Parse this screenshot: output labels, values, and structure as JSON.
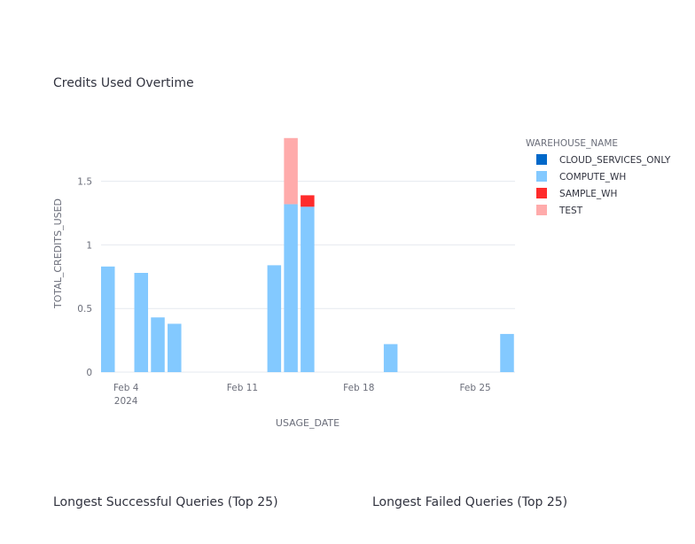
{
  "chart_title": "Credits Used Overtime",
  "sections": {
    "successful": "Longest Successful Queries (Top 25)",
    "failed": "Longest Failed Queries (Top 25)"
  },
  "chart_data": {
    "type": "bar",
    "stacked": true,
    "title": "Credits Used Overtime",
    "xlabel": "USAGE_DATE",
    "ylabel": "TOTAL_CREDITS_USED",
    "ylim": [
      0,
      1.95
    ],
    "yticks": [
      0,
      0.5,
      1,
      1.5
    ],
    "ytick_labels": [
      "0",
      "0.5",
      "1",
      "1.5"
    ],
    "x_range": [
      "2024-02-03",
      "2024-02-28"
    ],
    "xticks": [
      {
        "date": "2024-02-04",
        "label": "Feb 4",
        "sublabel": "2024"
      },
      {
        "date": "2024-02-11",
        "label": "Feb 11",
        "sublabel": ""
      },
      {
        "date": "2024-02-18",
        "label": "Feb 18",
        "sublabel": ""
      },
      {
        "date": "2024-02-25",
        "label": "Feb 25",
        "sublabel": ""
      }
    ],
    "legend": {
      "title": "WAREHOUSE_NAME",
      "placement": "right",
      "entries": [
        {
          "name": "CLOUD_SERVICES_ONLY",
          "color": "#0068c9"
        },
        {
          "name": "COMPUTE_WH",
          "color": "#83c9ff"
        },
        {
          "name": "SAMPLE_WH",
          "color": "#ff2b2b"
        },
        {
          "name": "TEST",
          "color": "#ffabab"
        }
      ]
    },
    "series": [
      {
        "name": "CLOUD_SERVICES_ONLY",
        "color": "#0068c9",
        "points": []
      },
      {
        "name": "COMPUTE_WH",
        "color": "#83c9ff",
        "points": [
          {
            "date": "2024-02-03",
            "value": 0.83
          },
          {
            "date": "2024-02-05",
            "value": 0.78
          },
          {
            "date": "2024-02-06",
            "value": 0.43
          },
          {
            "date": "2024-02-07",
            "value": 0.38
          },
          {
            "date": "2024-02-13",
            "value": 0.84
          },
          {
            "date": "2024-02-14",
            "value": 1.32
          },
          {
            "date": "2024-02-15",
            "value": 1.3
          },
          {
            "date": "2024-02-20",
            "value": 0.22
          },
          {
            "date": "2024-02-27",
            "value": 0.3
          }
        ]
      },
      {
        "name": "SAMPLE_WH",
        "color": "#ff2b2b",
        "points": [
          {
            "date": "2024-02-15",
            "value": 0.09
          }
        ]
      },
      {
        "name": "TEST",
        "color": "#ffabab",
        "points": [
          {
            "date": "2024-02-14",
            "value": 0.52
          }
        ]
      }
    ]
  }
}
